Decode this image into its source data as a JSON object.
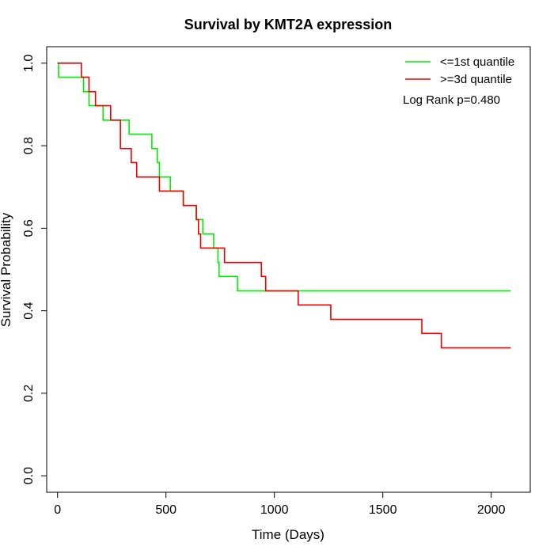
{
  "chart_data": {
    "type": "line",
    "title": "Survival by KMT2A expression",
    "xlabel": "Time (Days)",
    "ylabel": "Survival Probability",
    "xlim": [
      -50,
      2180
    ],
    "ylim": [
      -0.04,
      1.04
    ],
    "xticks": [
      0,
      500,
      1000,
      1500,
      2000
    ],
    "yticks": [
      0.0,
      0.2,
      0.4,
      0.6,
      0.8,
      1.0
    ],
    "xtick_labels": [
      "0",
      "500",
      "1000",
      "1500",
      "2000"
    ],
    "ytick_labels": [
      "0.0",
      "0.2",
      "0.4",
      "0.6",
      "0.8",
      "1.0"
    ],
    "grid": false,
    "legend_position": "top-right",
    "annotation": "Log Rank p=0.480",
    "series": [
      {
        "name": "<=1st quantile",
        "color": "#00ee00",
        "step_x": [
          0,
          5,
          120,
          145,
          190,
          210,
          330,
          435,
          460,
          465,
          470,
          520,
          580,
          640,
          670,
          720,
          740,
          745,
          830,
          2090
        ],
        "step_y": [
          1.0,
          0.966,
          0.931,
          0.897,
          0.897,
          0.862,
          0.828,
          0.793,
          0.759,
          0.759,
          0.724,
          0.69,
          0.655,
          0.621,
          0.586,
          0.552,
          0.517,
          0.483,
          0.448,
          0.448
        ]
      },
      {
        "name": ">=3d quantile",
        "color": "#ee0000",
        "step_x": [
          0,
          110,
          145,
          175,
          245,
          290,
          340,
          365,
          470,
          580,
          640,
          650,
          660,
          770,
          940,
          960,
          1110,
          1260,
          1680,
          1770,
          2090
        ],
        "step_y": [
          1.0,
          0.966,
          0.931,
          0.897,
          0.862,
          0.793,
          0.759,
          0.724,
          0.69,
          0.655,
          0.621,
          0.586,
          0.552,
          0.517,
          0.483,
          0.448,
          0.414,
          0.379,
          0.345,
          0.31,
          0.31
        ]
      }
    ]
  }
}
